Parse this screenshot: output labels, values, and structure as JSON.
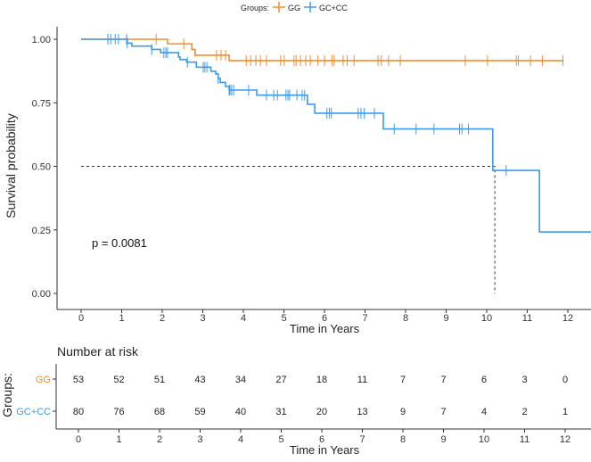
{
  "chart_data": {
    "type": "line",
    "subtype": "kaplan-meier",
    "ylabel": "Survival probability",
    "xlabel": "Time in Years",
    "xlim": [
      0,
      12.6
    ],
    "ylim": [
      0,
      1
    ],
    "xticks": [
      "0",
      "1",
      "2",
      "3",
      "4",
      "5",
      "6",
      "7",
      "8",
      "9",
      "10",
      "11",
      "12"
    ],
    "yticks": [
      "0.00",
      "0.25",
      "0.50",
      "0.75",
      "1.00"
    ],
    "grid": false,
    "legend": {
      "title": "Groups:",
      "position": "top"
    },
    "annotation": "p = 0.0081",
    "median_line": {
      "x": 10.2,
      "y": 0.5
    },
    "series": [
      {
        "name": "GG",
        "color": "#F28D2C",
        "steps": [
          [
            0,
            1
          ],
          [
            2.13,
            0.982
          ],
          [
            2.73,
            0.96
          ],
          [
            2.81,
            0.937
          ],
          [
            3.65,
            0.916
          ],
          [
            11.88,
            0.916
          ]
        ],
        "censors": [
          0.66,
          1.85,
          2.53,
          3.34,
          3.45,
          3.56,
          4.07,
          4.18,
          4.31,
          4.42,
          4.57,
          4.92,
          5.01,
          5.25,
          5.3,
          5.41,
          5.54,
          5.65,
          5.84,
          6.0,
          6.19,
          6.24,
          6.46,
          6.56,
          6.73,
          7.32,
          7.4,
          7.58,
          7.87,
          9.47,
          10.02,
          10.73,
          10.78,
          11.08,
          11.37,
          11.88
        ]
      },
      {
        "name": "GC+CC",
        "color": "#3C9BEB",
        "steps": [
          [
            0,
            1
          ],
          [
            1.14,
            0.985
          ],
          [
            1.25,
            0.973
          ],
          [
            1.74,
            0.96
          ],
          [
            1.96,
            0.947
          ],
          [
            2.4,
            0.93
          ],
          [
            2.44,
            0.92
          ],
          [
            2.6,
            0.91
          ],
          [
            2.84,
            0.89
          ],
          [
            3.2,
            0.874
          ],
          [
            3.32,
            0.863
          ],
          [
            3.38,
            0.846
          ],
          [
            3.43,
            0.83
          ],
          [
            3.56,
            0.814
          ],
          [
            3.65,
            0.8
          ],
          [
            4.33,
            0.78
          ],
          [
            5.58,
            0.744
          ],
          [
            5.76,
            0.709
          ],
          [
            7.45,
            0.647
          ],
          [
            10.15,
            0.484
          ],
          [
            11.3,
            0.242
          ],
          [
            12.6,
            0.242
          ]
        ],
        "censors": [
          0.66,
          0.73,
          0.84,
          0.92,
          1.12,
          1.14,
          1.74,
          2.04,
          2.09,
          2.13,
          2.62,
          3.01,
          3.05,
          3.1,
          3.38,
          3.65,
          3.67,
          3.71,
          3.76,
          4.13,
          4.57,
          4.75,
          4.84,
          5.05,
          5.1,
          5.14,
          5.32,
          5.45,
          5.51,
          6.06,
          6.12,
          6.17,
          6.83,
          6.9,
          6.98,
          7.23,
          7.72,
          8.26,
          8.7,
          9.33,
          9.39,
          9.55,
          10.48
        ]
      }
    ],
    "risk_table": {
      "title": "Number at risk",
      "ylabel": "Groups:",
      "xlabel": "Time in Years",
      "times": [
        "0",
        "1",
        "2",
        "3",
        "4",
        "5",
        "6",
        "7",
        "8",
        "9",
        "10",
        "11",
        "12"
      ],
      "rows": [
        {
          "name": "GG",
          "values": [
            "53",
            "52",
            "51",
            "43",
            "34",
            "27",
            "18",
            "11",
            "7",
            "7",
            "6",
            "3",
            "0"
          ]
        },
        {
          "name": "GC+CC",
          "values": [
            "80",
            "76",
            "68",
            "59",
            "40",
            "31",
            "20",
            "13",
            "9",
            "7",
            "4",
            "2",
            "1"
          ]
        }
      ]
    }
  }
}
